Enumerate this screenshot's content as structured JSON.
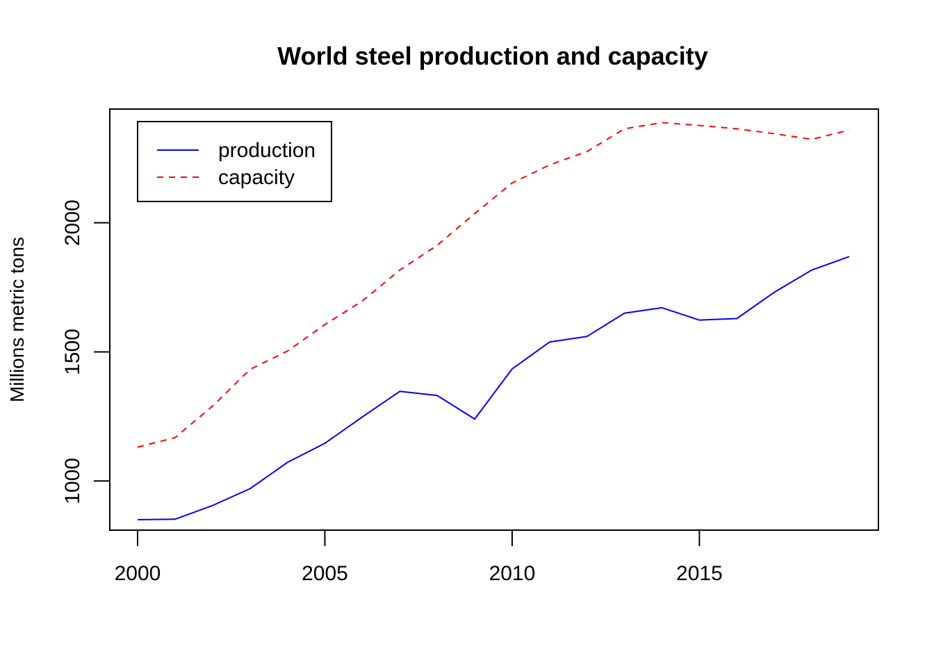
{
  "chart_data": {
    "type": "line",
    "title": "World steel production and capacity",
    "xlabel": "",
    "ylabel": "Millions metric tons",
    "x": [
      2000,
      2001,
      2002,
      2003,
      2004,
      2005,
      2006,
      2007,
      2008,
      2009,
      2010,
      2011,
      2012,
      2013,
      2014,
      2015,
      2016,
      2017,
      2018,
      2019
    ],
    "x_ticks": [
      2000,
      2005,
      2010,
      2015
    ],
    "y_ticks": [
      1000,
      1500,
      2000
    ],
    "xlim": [
      2000,
      2019
    ],
    "ylim": [
      850,
      2400
    ],
    "grid": false,
    "legend_position": "top-left",
    "series": [
      {
        "name": "production",
        "color": "#0000ff",
        "line_style": "solid",
        "values": [
          850,
          852,
          905,
          970,
          1072,
          1146,
          1248,
          1347,
          1331,
          1240,
          1434,
          1538,
          1560,
          1650,
          1671,
          1623,
          1629,
          1731,
          1817,
          1869
        ]
      },
      {
        "name": "capacity",
        "color": "#ff0000",
        "line_style": "dashed",
        "values": [
          1131,
          1168,
          1290,
          1432,
          1503,
          1606,
          1697,
          1817,
          1913,
          2036,
          2154,
          2224,
          2276,
          2364,
          2388,
          2377,
          2364,
          2345,
          2323,
          2359
        ]
      }
    ]
  }
}
